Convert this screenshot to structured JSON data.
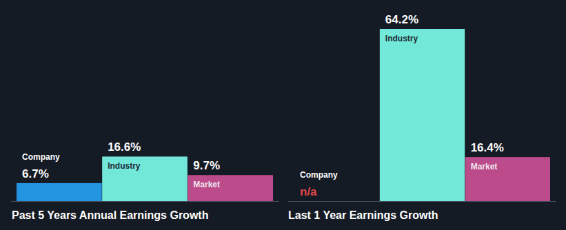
{
  "chart_data": [
    {
      "type": "bar",
      "title": "Past 5 Years Annual Earnings Growth",
      "categories": [
        "Company",
        "Industry",
        "Market"
      ],
      "values": [
        6.7,
        16.6,
        9.7
      ],
      "value_labels": [
        "6.7%",
        "16.6%",
        "9.7%"
      ],
      "colors": [
        "#2394df",
        "#71e8d8",
        "#bb4b8a"
      ],
      "data_labels": true,
      "tick_labels": false
    },
    {
      "type": "bar",
      "title": "Last 1 Year Earnings Growth",
      "categories": [
        "Company",
        "Industry",
        "Market"
      ],
      "values": [
        null,
        64.2,
        16.4
      ],
      "value_labels": [
        "n/a",
        "64.2%",
        "16.4%"
      ],
      "colors": [
        "#2394df",
        "#71e8d8",
        "#bb4b8a"
      ],
      "data_labels": true,
      "tick_labels": false
    }
  ]
}
